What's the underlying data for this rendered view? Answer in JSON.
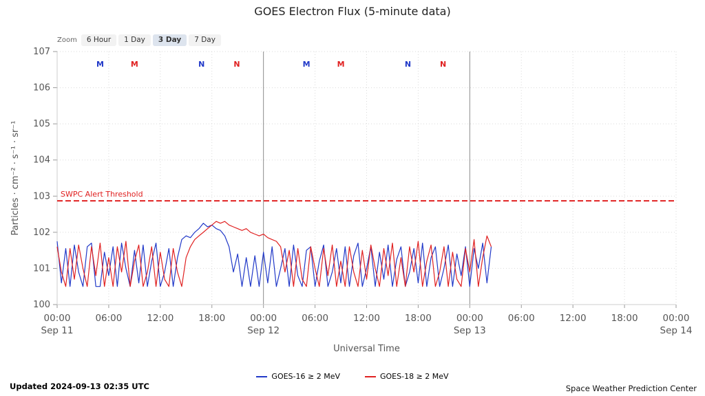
{
  "title": "GOES Electron Flux (5-minute data)",
  "zoom": {
    "label": "Zoom",
    "options": [
      "6 Hour",
      "1 Day",
      "3 Day",
      "7 Day"
    ],
    "active": "3 Day"
  },
  "footer": {
    "updated": "Updated 2024-09-13 02:35 UTC",
    "source": "Space Weather Prediction Center"
  },
  "chart_data": {
    "type": "line",
    "title": "GOES Electron Flux (5-minute data)",
    "xlabel": "Universal Time",
    "ylabel": "Particles · cm⁻² · s⁻¹ · sr⁻¹",
    "x_unit": "hours since Sep 11 00:00 UTC",
    "xlim": [
      0,
      72
    ],
    "ylim": [
      0,
      7
    ],
    "y_scale": "log10 exponent of flux",
    "grid": "dotted",
    "legend_position": "bottom",
    "xticks": [
      {
        "t": 0,
        "time": "00:00",
        "date": "Sep 11"
      },
      {
        "t": 6,
        "time": "06:00"
      },
      {
        "t": 12,
        "time": "12:00"
      },
      {
        "t": 18,
        "time": "18:00"
      },
      {
        "t": 24,
        "time": "00:00",
        "date": "Sep 12"
      },
      {
        "t": 30,
        "time": "06:00"
      },
      {
        "t": 36,
        "time": "12:00"
      },
      {
        "t": 42,
        "time": "18:00"
      },
      {
        "t": 48,
        "time": "00:00",
        "date": "Sep 13"
      },
      {
        "t": 54,
        "time": "06:00"
      },
      {
        "t": 60,
        "time": "12:00"
      },
      {
        "t": 66,
        "time": "18:00"
      },
      {
        "t": 72,
        "time": "00:00",
        "date": "Sep 14"
      }
    ],
    "yticks": [
      {
        "exp": 7,
        "label": "107"
      },
      {
        "exp": 6,
        "label": "106"
      },
      {
        "exp": 5,
        "label": "105"
      },
      {
        "exp": 4,
        "label": "104"
      },
      {
        "exp": 3,
        "label": "103"
      },
      {
        "exp": 2,
        "label": "102"
      },
      {
        "exp": 1,
        "label": "101"
      },
      {
        "exp": 0,
        "label": "100"
      }
    ],
    "day_lines": [
      24,
      48
    ],
    "threshold": {
      "label": "SWPC Alert Threshold",
      "exp": 2.87,
      "color": "#e02020"
    },
    "event_markers": [
      {
        "t": 5.0,
        "label": "M",
        "color": "#2038c8"
      },
      {
        "t": 9.0,
        "label": "M",
        "color": "#e02020"
      },
      {
        "t": 16.8,
        "label": "N",
        "color": "#2038c8"
      },
      {
        "t": 20.9,
        "label": "N",
        "color": "#e02020"
      },
      {
        "t": 29.0,
        "label": "M",
        "color": "#2038c8"
      },
      {
        "t": 33.0,
        "label": "M",
        "color": "#e02020"
      },
      {
        "t": 40.8,
        "label": "N",
        "color": "#2038c8"
      },
      {
        "t": 44.9,
        "label": "N",
        "color": "#e02020"
      }
    ],
    "series": [
      {
        "name": "GOES-16 ≥ 2 MeV",
        "color": "#2038c8",
        "t0": 0,
        "dt": 0.5,
        "log10_flux": [
          1.75,
          0.6,
          1.55,
          0.5,
          1.65,
          0.9,
          0.5,
          1.6,
          1.7,
          0.5,
          0.5,
          1.45,
          0.8,
          1.6,
          0.5,
          1.7,
          1.0,
          0.5,
          1.5,
          0.6,
          1.65,
          0.5,
          1.2,
          1.7,
          0.5,
          0.9,
          1.55,
          0.5,
          1.3,
          1.8,
          1.9,
          1.85,
          2.0,
          2.1,
          2.25,
          2.15,
          2.2,
          2.1,
          2.05,
          1.9,
          1.6,
          0.9,
          1.4,
          0.5,
          1.3,
          0.5,
          1.35,
          0.5,
          1.45,
          0.6,
          1.6,
          0.5,
          1.0,
          1.55,
          0.5,
          1.65,
          0.8,
          0.5,
          1.5,
          1.6,
          0.5,
          1.2,
          1.65,
          0.5,
          0.9,
          1.55,
          0.6,
          1.6,
          0.5,
          1.35,
          1.7,
          0.5,
          1.0,
          1.6,
          0.5,
          1.45,
          0.7,
          1.65,
          0.5,
          1.25,
          1.6,
          0.5,
          0.9,
          1.55,
          0.6,
          1.7,
          0.5,
          1.3,
          1.6,
          0.5,
          1.0,
          1.65,
          0.5,
          1.4,
          0.8,
          1.6,
          0.5,
          1.55,
          1.0,
          1.7,
          0.6,
          1.6
        ]
      },
      {
        "name": "GOES-18 ≥ 2 MeV",
        "color": "#e02020",
        "t0": 0,
        "dt": 0.5,
        "log10_flux": [
          1.6,
          0.9,
          0.5,
          1.55,
          0.7,
          1.65,
          1.0,
          0.5,
          1.6,
          0.8,
          1.7,
          0.5,
          1.3,
          0.5,
          1.6,
          0.9,
          1.75,
          0.5,
          1.2,
          1.65,
          0.5,
          0.9,
          1.6,
          0.5,
          1.45,
          0.7,
          0.5,
          1.55,
          0.9,
          0.5,
          1.3,
          1.6,
          1.8,
          1.9,
          2.0,
          2.1,
          2.2,
          2.3,
          2.25,
          2.3,
          2.2,
          2.15,
          2.1,
          2.05,
          2.1,
          2.0,
          1.95,
          1.9,
          1.95,
          1.85,
          1.8,
          1.75,
          1.6,
          0.9,
          1.5,
          0.5,
          1.55,
          0.7,
          0.5,
          1.6,
          1.0,
          0.5,
          1.55,
          0.8,
          1.65,
          0.5,
          1.2,
          0.5,
          1.6,
          0.9,
          0.5,
          1.5,
          0.7,
          1.65,
          1.0,
          0.5,
          1.55,
          0.8,
          1.7,
          0.5,
          1.3,
          0.5,
          1.6,
          0.9,
          1.75,
          0.5,
          1.2,
          1.65,
          0.5,
          0.9,
          1.6,
          0.5,
          1.45,
          0.7,
          0.5,
          1.55,
          0.9,
          1.8,
          0.5,
          1.3,
          1.9,
          1.6
        ]
      }
    ]
  }
}
